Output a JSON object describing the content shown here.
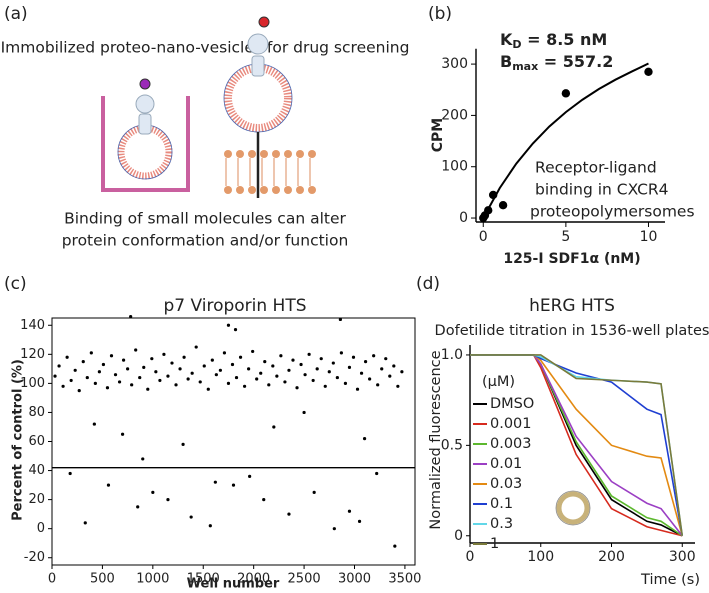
{
  "diagram": {
    "panel_label": "(a)",
    "title": "Immobilized proteo-nano-vesicles for drug screening",
    "caption": [
      "Binding of small molecules can alter",
      "protein conformation and/or function"
    ]
  },
  "chart_data": [
    {
      "type": "scatter",
      "panel_label": "(b)",
      "x": [
        0,
        0.1,
        0.3,
        0.6,
        1.2,
        5,
        10
      ],
      "y": [
        0,
        5,
        15,
        45,
        25,
        243,
        285
      ],
      "color": "#000000",
      "fit": {
        "x": [
          0,
          1,
          2,
          3,
          4,
          5,
          6,
          7,
          8,
          9,
          10
        ],
        "y": [
          0,
          58.6,
          106.1,
          145.2,
          178.4,
          206.4,
          230.5,
          251.4,
          269.6,
          285.7,
          301.2
        ]
      },
      "annotation_kd": {
        "symbol": "K",
        "subscript": "D",
        "text": " = 8.5 nM"
      },
      "annotation_bmax": {
        "symbol": "B",
        "subscript": "max",
        "text": " = 557.2"
      },
      "annotation": [
        "Receptor-ligand",
        "binding in CXCR4",
        "proteopolymersomes"
      ],
      "xlabel": "125-I SDF1α (nM)",
      "ylabel": "CPM",
      "xlim": [
        -0.5,
        11
      ],
      "ylim": [
        -5,
        330
      ],
      "xticks": [
        0,
        5,
        10
      ],
      "yticks": [
        0,
        100,
        200,
        300
      ]
    },
    {
      "type": "scatter",
      "panel_label": "(c)",
      "title": "p7 Viroporin HTS",
      "x": [
        30,
        70,
        110,
        150,
        190,
        230,
        270,
        310,
        350,
        390,
        430,
        470,
        510,
        550,
        590,
        630,
        670,
        710,
        750,
        790,
        830,
        870,
        910,
        950,
        990,
        1030,
        1070,
        1110,
        1150,
        1190,
        1230,
        1270,
        1310,
        1350,
        1390,
        1430,
        1470,
        1510,
        1550,
        1590,
        1630,
        1670,
        1710,
        1750,
        1790,
        1830,
        1870,
        1910,
        1950,
        1990,
        2030,
        2070,
        2110,
        2150,
        2190,
        2230,
        2270,
        2310,
        2350,
        2390,
        2430,
        2470,
        2510,
        2550,
        2590,
        2630,
        2670,
        2710,
        2750,
        2790,
        2830,
        2870,
        2910,
        2950,
        2990,
        3030,
        3070,
        3110,
        3150,
        3190,
        3230,
        3270,
        3310,
        3350,
        3390,
        3430,
        3470,
        780,
        1750,
        1820,
        2860,
        420,
        700,
        1300,
        2200,
        3100,
        900,
        2500,
        180,
        330,
        560,
        850,
        1000,
        1150,
        1380,
        1570,
        1800,
        1960,
        2100,
        2350,
        2600,
        2800,
        2950,
        3220,
        3400,
        3050,
        1620
      ],
      "y": [
        105,
        112,
        98,
        118,
        102,
        109,
        95,
        115,
        104,
        121,
        100,
        108,
        113,
        97,
        119,
        106,
        101,
        116,
        110,
        99,
        123,
        104,
        111,
        96,
        117,
        108,
        102,
        120,
        105,
        114,
        99,
        110,
        118,
        103,
        107,
        125,
        101,
        112,
        96,
        116,
        106,
        109,
        121,
        100,
        113,
        104,
        118,
        98,
        110,
        122,
        103,
        107,
        115,
        99,
        112,
        105,
        119,
        101,
        109,
        116,
        97,
        113,
        106,
        120,
        102,
        110,
        117,
        98,
        108,
        114,
        104,
        121,
        100,
        111,
        118,
        96,
        107,
        115,
        103,
        119,
        99,
        110,
        117,
        105,
        112,
        98,
        108,
        146,
        140,
        137,
        144,
        72,
        65,
        58,
        70,
        62,
        48,
        80,
        38,
        4,
        30,
        15,
        25,
        20,
        8,
        2,
        30,
        36,
        20,
        10,
        25,
        0,
        12,
        38,
        -12,
        5,
        32
      ],
      "color": "#000000",
      "hline": 42,
      "xlabel": "Well number",
      "ylabel": "Percent of control (%)",
      "xlim": [
        0,
        3600
      ],
      "ylim": [
        -25,
        145
      ],
      "xticks": [
        0,
        500,
        1000,
        1500,
        2000,
        2500,
        3000,
        3500
      ],
      "yticks": [
        -20,
        0,
        20,
        40,
        60,
        80,
        100,
        120,
        140
      ],
      "frame": true
    },
    {
      "type": "line",
      "panel_label": "(d)",
      "title": "hERG HTS",
      "subtitle": "Dofetilide titration in 1536-well plates",
      "x": [
        0,
        50,
        90,
        100,
        150,
        200,
        250,
        270,
        300
      ],
      "legend_title": "(μM)",
      "series": [
        {
          "name": "DMSO",
          "color": "#000000",
          "values": [
            1,
            1,
            1,
            0.95,
            0.5,
            0.2,
            0.08,
            0.06,
            0
          ]
        },
        {
          "name": "0.001",
          "color": "#d62a1e",
          "values": [
            1,
            1,
            1,
            0.93,
            0.45,
            0.15,
            0.05,
            0.03,
            0
          ]
        },
        {
          "name": "0.003",
          "color": "#5cb82e",
          "values": [
            1,
            1,
            1,
            0.95,
            0.52,
            0.22,
            0.1,
            0.08,
            0
          ]
        },
        {
          "name": "0.01",
          "color": "#9b3fc4",
          "values": [
            1,
            1,
            1,
            0.95,
            0.55,
            0.3,
            0.18,
            0.15,
            0
          ]
        },
        {
          "name": "0.03",
          "color": "#e38a12",
          "values": [
            1,
            1,
            1,
            0.97,
            0.7,
            0.5,
            0.44,
            0.43,
            0
          ]
        },
        {
          "name": "0.1",
          "color": "#1f3fd1",
          "values": [
            1,
            1,
            1,
            0.98,
            0.9,
            0.85,
            0.7,
            0.67,
            0
          ]
        },
        {
          "name": "0.3",
          "color": "#62d7e8",
          "values": [
            1,
            1,
            1,
            0.99,
            0.88,
            0.86,
            0.85,
            0.84,
            0
          ]
        },
        {
          "name": "1",
          "color": "#7a7a3a",
          "values": [
            1,
            1,
            1,
            1,
            0.87,
            0.86,
            0.85,
            0.84,
            0
          ]
        }
      ],
      "xlabel": "Time (s)",
      "ylabel": "Normalized fluorescence",
      "xlim": [
        0,
        318
      ],
      "ylim": [
        -0.04,
        1.055
      ],
      "xticks": [
        0,
        100,
        200,
        300
      ],
      "yticks": [
        0,
        0.5,
        {
          "value": 1,
          "label": "1.0"
        }
      ]
    }
  ]
}
